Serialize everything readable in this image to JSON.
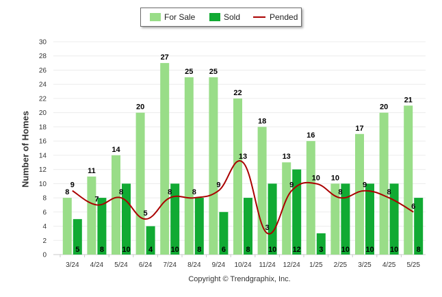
{
  "chart_data": {
    "type": "bar",
    "categories": [
      "3/24",
      "4/24",
      "5/24",
      "6/24",
      "7/24",
      "8/24",
      "9/24",
      "10/24",
      "11/24",
      "12/24",
      "1/25",
      "2/25",
      "3/25",
      "4/25",
      "5/25"
    ],
    "series": [
      {
        "name": "For Sale",
        "type": "bar",
        "color": "#99dd88",
        "values": [
          8,
          11,
          14,
          20,
          27,
          25,
          25,
          22,
          18,
          13,
          16,
          10,
          17,
          20,
          21
        ]
      },
      {
        "name": "Sold",
        "type": "bar",
        "color": "#11aa33",
        "values": [
          5,
          8,
          10,
          4,
          10,
          8,
          6,
          8,
          10,
          12,
          3,
          10,
          10,
          10,
          8
        ]
      },
      {
        "name": "Pended",
        "type": "line",
        "color": "#aa0000",
        "values": [
          9,
          7,
          8,
          5,
          8,
          8,
          9,
          13,
          3,
          9,
          10,
          8,
          9,
          8,
          6
        ]
      }
    ],
    "ylabel": "Number of Homes",
    "xlabel": "",
    "ylim": [
      0,
      30
    ],
    "yticks": [
      0,
      2,
      4,
      6,
      8,
      10,
      12,
      14,
      16,
      18,
      20,
      22,
      24,
      26,
      28,
      30
    ],
    "grid": true,
    "legend_position": "top-center"
  },
  "footer": {
    "copyright": "Copyright © Trendgraphix, Inc."
  }
}
